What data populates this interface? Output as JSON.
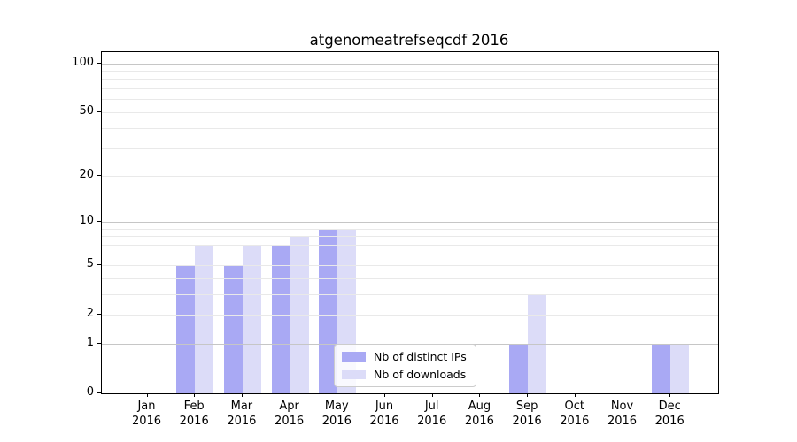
{
  "chart_data": {
    "type": "bar",
    "title": "atgenomeatrefseqcdf 2016",
    "categories": [
      "Jan",
      "Feb",
      "Mar",
      "Apr",
      "May",
      "Jun",
      "Jul",
      "Aug",
      "Sep",
      "Oct",
      "Nov",
      "Dec"
    ],
    "year_label": "2016",
    "series": [
      {
        "name": "Nb of distinct IPs",
        "color": "#a9a9f4",
        "values": [
          0,
          5,
          5,
          7,
          9,
          0,
          0,
          0,
          1,
          0,
          0,
          1
        ]
      },
      {
        "name": "Nb of downloads",
        "color": "#dcdcf8",
        "values": [
          0,
          7,
          7,
          8,
          9,
          0,
          0,
          0,
          3,
          0,
          0,
          1
        ]
      }
    ],
    "yscale": "log1p",
    "ylim": [
      0,
      117
    ],
    "yticks": [
      0,
      1,
      2,
      5,
      10,
      20,
      50,
      100
    ],
    "grid_major": [
      1,
      10,
      100
    ],
    "grid_minor": [
      2,
      3,
      4,
      5,
      6,
      7,
      8,
      9,
      20,
      30,
      40,
      50,
      60,
      70,
      80,
      90
    ],
    "xlabel": "",
    "ylabel": "",
    "grid": true,
    "legend_position": "lower center"
  },
  "legend": {
    "items": [
      {
        "label": "Nb of distinct IPs",
        "color": "#a9a9f4"
      },
      {
        "label": "Nb of downloads",
        "color": "#dcdcf8"
      }
    ]
  },
  "colors": {
    "background": "#ffffff",
    "spine": "#000000",
    "grid_major": "#c6c6c6",
    "grid_minor": "#e9e9e9",
    "text": "#000000"
  }
}
